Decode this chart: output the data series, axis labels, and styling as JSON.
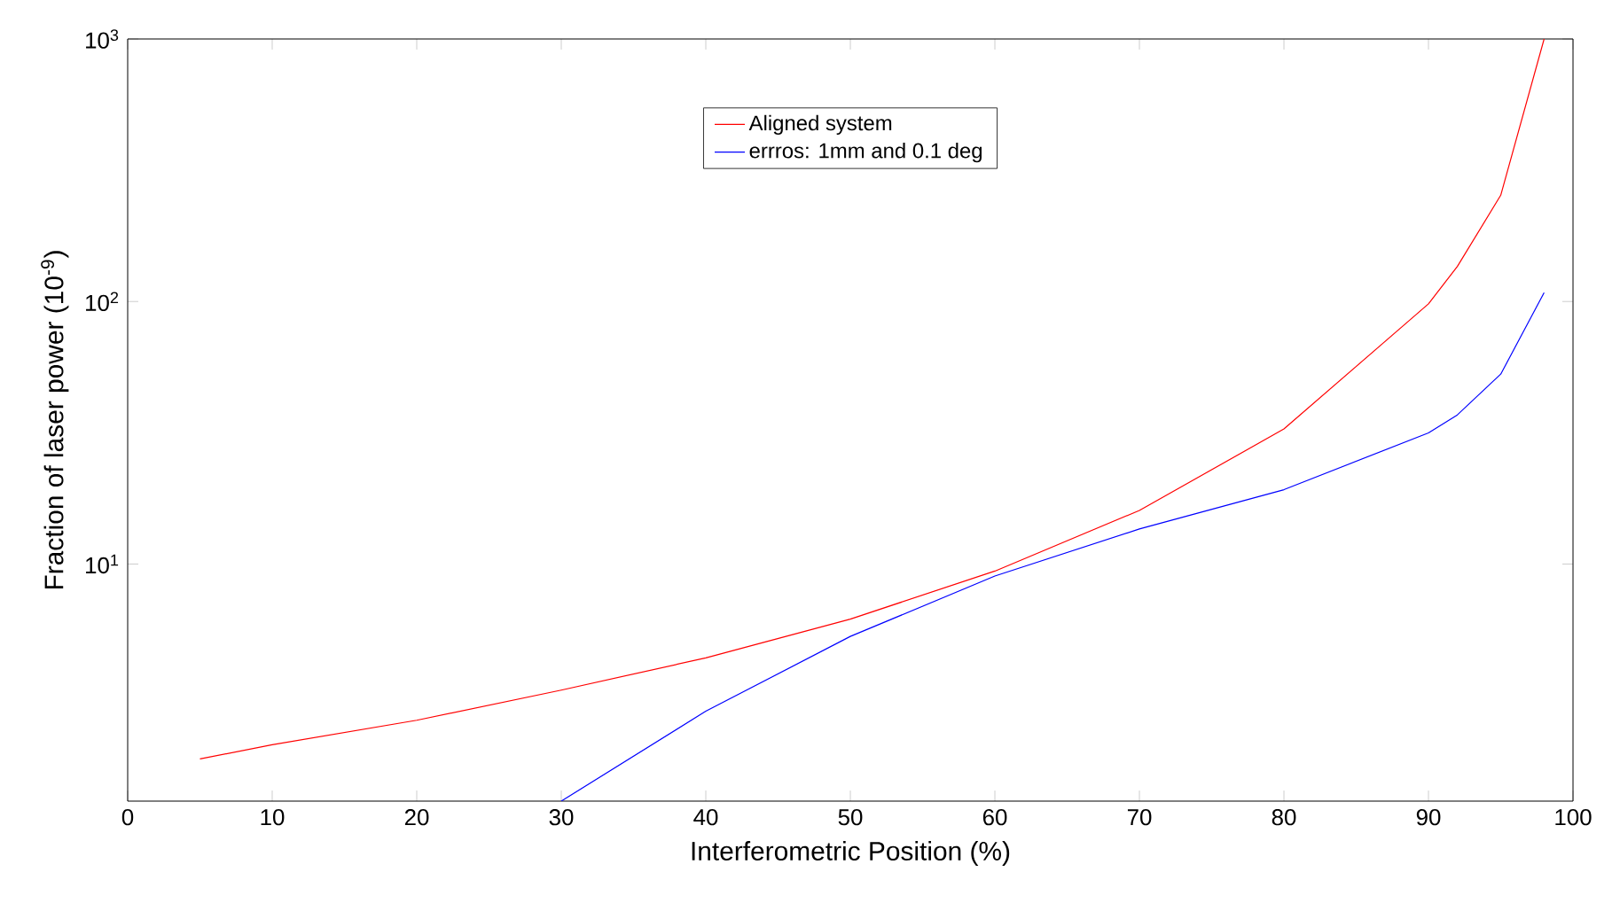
{
  "chart_data": {
    "type": "line",
    "xlabel": "Interferometric Position (%)",
    "ylabel": "Fraction of laser power (10$^{-9}$)",
    "log": "y",
    "xlim": [
      0,
      100
    ],
    "xticks": [
      0,
      10,
      20,
      30,
      40,
      50,
      60,
      70,
      80,
      90,
      100
    ],
    "ylim": [
      1.25,
      1000
    ],
    "yticks": [
      {
        "value": 10,
        "label": "10$^{1}$"
      },
      {
        "value": 100,
        "label": "10$^{2}$"
      },
      {
        "value": 1000,
        "label": "10$^{3}$"
      }
    ],
    "legend": "top",
    "grid": false,
    "series": [
      {
        "name": "Aligned system",
        "color": "#ff0000",
        "x": [
          5,
          10,
          20,
          30,
          40,
          50,
          60,
          70,
          80,
          90,
          92,
          95,
          98
        ],
        "values": [
          1.81,
          2.05,
          2.54,
          3.31,
          4.39,
          6.17,
          9.4,
          16,
          32.7,
          98,
          136,
          254,
          1000
        ]
      },
      {
        "name": "errros: 1mm and 0.1 deg",
        "color": "#0000ff",
        "x": [
          30,
          40,
          50,
          60,
          70,
          80,
          90,
          92,
          95,
          98
        ],
        "values": [
          1.25,
          2.75,
          5.3,
          9.0,
          13.6,
          19.2,
          31.6,
          37,
          52.9,
          108
        ]
      }
    ]
  }
}
